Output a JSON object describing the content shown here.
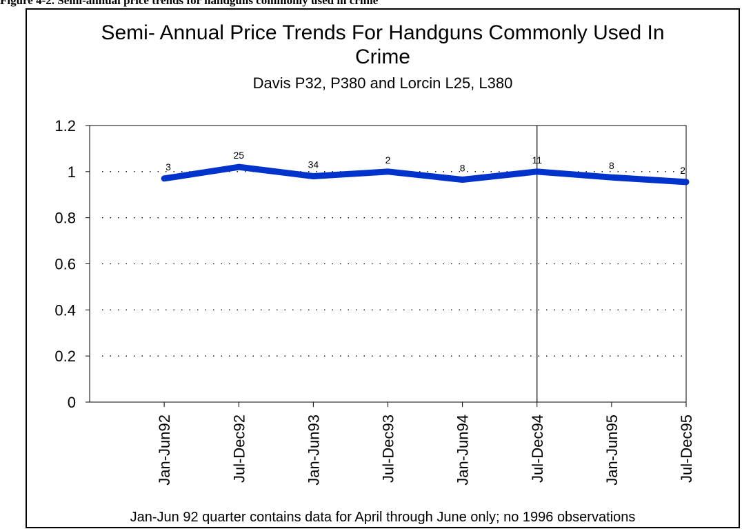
{
  "figure_caption": "Figure 4-2.    Semi-annual price trends for handguns commonly used in crime",
  "chart_data": {
    "type": "line",
    "title_line1": "Semi- Annual Price Trends For Handguns Commonly Used In",
    "title_line2": "Crime",
    "subtitle": "Davis P32, P380 and Lorcin L25, L380",
    "categories": [
      "Jan-Jun92",
      "Jul-Dec92",
      "Jan-Jun93",
      "Jul-Dec93",
      "Jan-Jun94",
      "Jul-Dec94",
      "Jan-Jun95",
      "Jul-Dec95"
    ],
    "values": [
      0.97,
      1.02,
      0.98,
      1.0,
      0.965,
      1.0,
      0.975,
      0.955
    ],
    "data_labels": [
      "3",
      "25",
      "34",
      "2",
      "8",
      "11",
      "8",
      "2"
    ],
    "ylim": [
      0,
      1.2
    ],
    "yticks": [
      "0",
      "0.2",
      "0.4",
      "0.6",
      "0.8",
      "1",
      "1.2"
    ],
    "grid": "dotted horizontal",
    "line_color": "#0033CC",
    "footnote": "Jan-Jun 92 quarter contains data for April through June only; no 1996 observations"
  }
}
